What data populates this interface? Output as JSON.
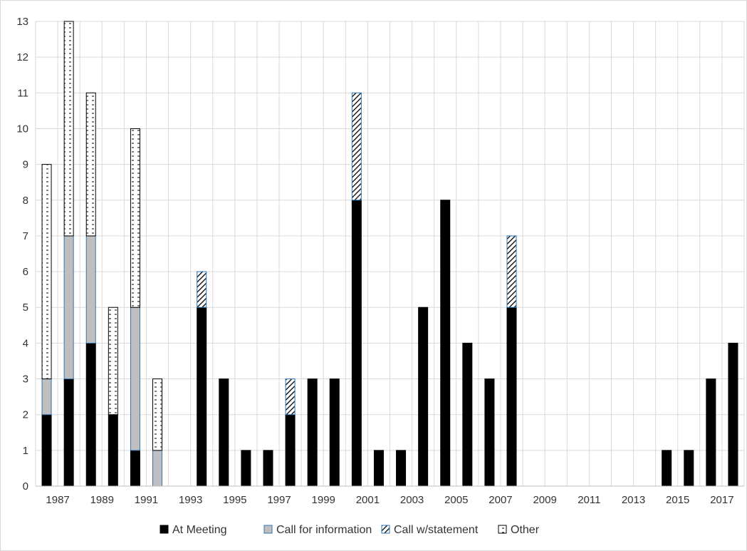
{
  "chart_data": {
    "type": "bar",
    "stacked": true,
    "categories": [
      "1987",
      "1988",
      "1989",
      "1990",
      "1991",
      "1992",
      "1993",
      "1994",
      "1995",
      "1996",
      "1997",
      "1998",
      "1999",
      "2000",
      "2001",
      "2002",
      "2003",
      "2004",
      "2005",
      "2006",
      "2007",
      "2008",
      "2009",
      "2010",
      "2011",
      "2012",
      "2013",
      "2014",
      "2015",
      "2016",
      "2017",
      "2018"
    ],
    "x_tick_labels": [
      "1987",
      "1989",
      "1991",
      "1993",
      "1995",
      "1997",
      "1999",
      "2001",
      "2003",
      "2005",
      "2007",
      "2009",
      "2011",
      "2013",
      "2015",
      "2017"
    ],
    "series": [
      {
        "name": "At Meeting",
        "color": "#000000",
        "pattern": "solid",
        "values": [
          2,
          3,
          4,
          2,
          1,
          0,
          0,
          5,
          3,
          1,
          1,
          2,
          3,
          3,
          8,
          1,
          1,
          5,
          8,
          4,
          3,
          5,
          0,
          0,
          0,
          0,
          0,
          0,
          1,
          1,
          3,
          4
        ]
      },
      {
        "name": "Call for information",
        "color": "#bfbfbf",
        "pattern": "solid-gray",
        "values": [
          1,
          4,
          3,
          0,
          4,
          1,
          0,
          0,
          0,
          0,
          0,
          0,
          0,
          0,
          0,
          0,
          0,
          0,
          0,
          0,
          0,
          0,
          0,
          0,
          0,
          0,
          0,
          0,
          0,
          0,
          0,
          0
        ]
      },
      {
        "name": "Call w/statement",
        "color": "#000000",
        "pattern": "diagonal-hatch",
        "values": [
          0,
          0,
          0,
          0,
          0,
          0,
          0,
          1,
          0,
          0,
          0,
          1,
          0,
          0,
          3,
          0,
          0,
          0,
          0,
          0,
          0,
          2,
          0,
          0,
          0,
          0,
          0,
          0,
          0,
          0,
          0,
          0
        ]
      },
      {
        "name": "Other",
        "color": "#000000",
        "pattern": "dashed-dots",
        "values": [
          6,
          6,
          4,
          3,
          5,
          2,
          0,
          0,
          0,
          0,
          0,
          0,
          0,
          0,
          0,
          0,
          0,
          0,
          0,
          0,
          0,
          0,
          0,
          0,
          0,
          0,
          0,
          0,
          0,
          0,
          0,
          0
        ]
      }
    ],
    "title": "",
    "xlabel": "",
    "ylabel": "",
    "ylim": [
      0,
      13
    ],
    "y_ticks": [
      0,
      1,
      2,
      3,
      4,
      5,
      6,
      7,
      8,
      9,
      10,
      11,
      12,
      13
    ],
    "grid": {
      "horizontal": true,
      "vertical": true
    },
    "legend_position": "bottom"
  }
}
